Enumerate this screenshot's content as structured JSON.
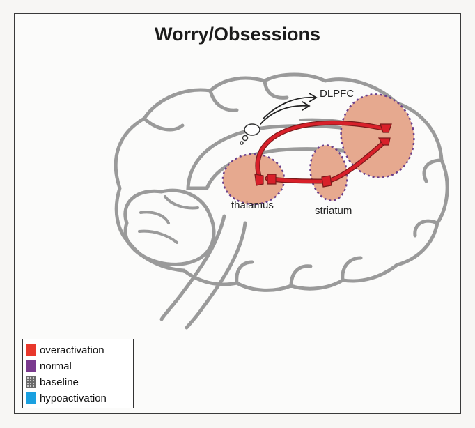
{
  "title": "Worry/Obsessions",
  "regions": {
    "dlpfc": "DLPFC",
    "thalamus": "thalamus",
    "striatum": "striatum"
  },
  "legend": [
    {
      "label": "overactivation",
      "color": "#e8382c",
      "icon": "square-swatch"
    },
    {
      "label": "normal",
      "color": "#7a3a8e",
      "icon": "square-swatch"
    },
    {
      "label": "baseline",
      "color": "#6a6a6a",
      "icon": "dotted-swatch"
    },
    {
      "label": "hypoactivation",
      "color": "#1aa0e0",
      "icon": "square-swatch"
    }
  ],
  "colors": {
    "outline": "#9a9a9a",
    "region_fill": "#e6a98f",
    "region_border": "#6a3f8a",
    "circuit": "#d8202a"
  }
}
